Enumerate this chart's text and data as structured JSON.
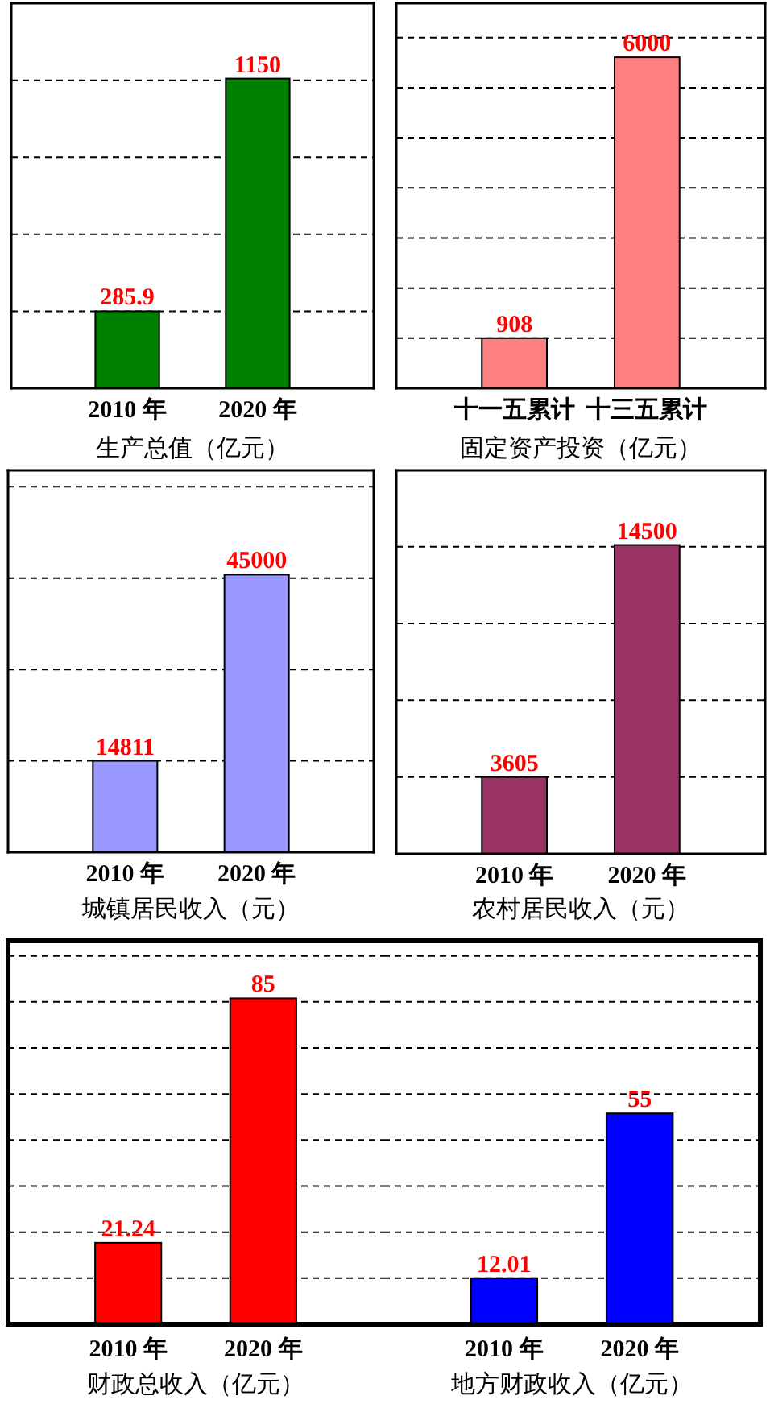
{
  "chart_data": [
    {
      "type": "bar",
      "xlabel": "生产总值（亿元）",
      "categories": [
        "2010 年",
        "2020 年"
      ],
      "values": [
        285.9,
        1150
      ],
      "color": "#008000",
      "ylim": [
        0,
        1430
      ],
      "yticks": [
        285.9,
        571.8,
        857.7,
        1143.6
      ],
      "grid": "y",
      "tick_labels": "x",
      "data_labels": true
    },
    {
      "type": "bar",
      "xlabel": "固定资产投资（亿元）",
      "categories": [
        "十一五累计",
        "十三五累计"
      ],
      "values": [
        908,
        6000
      ],
      "color": "#ff8080",
      "ylim": [
        0,
        6980
      ],
      "yticks": [
        908,
        1816,
        2724,
        3632,
        4540,
        5448,
        6356
      ],
      "grid": "y",
      "tick_labels": "x",
      "data_labels": true
    },
    {
      "type": "bar",
      "xlabel": "城镇居民收入（元）",
      "categories": [
        "2010 年",
        "2020 年"
      ],
      "values": [
        14811,
        45000
      ],
      "color": "#9999ff",
      "ylim": [
        0,
        61900
      ],
      "yticks": [
        14811,
        29622,
        44433,
        59244
      ],
      "grid": "y",
      "tick_labels": "x",
      "data_labels": true
    },
    {
      "type": "bar",
      "xlabel": "农村居民收入（元）",
      "categories": [
        "2010 年",
        "2020 年"
      ],
      "values": [
        3605,
        14500
      ],
      "color": "#993366",
      "ylim": [
        0,
        18000
      ],
      "yticks": [
        3605,
        7210,
        10815,
        14420
      ],
      "grid": "y",
      "tick_labels": "x",
      "data_labels": true
    },
    {
      "type": "bar",
      "xlabel": "财政总收入（亿元）",
      "categories": [
        "2010 年",
        "2020 年"
      ],
      "values": [
        21.24,
        85
      ],
      "color": "#ff0000",
      "ylim": [
        0,
        100
      ],
      "yticks": [
        12.01,
        24.02,
        36.03,
        48.04,
        60.05,
        72.06,
        84.07,
        96.08
      ],
      "grid": "y",
      "tick_labels": "x",
      "data_labels": true
    },
    {
      "type": "bar",
      "xlabel": "地方财政收入（亿元）",
      "categories": [
        "2010 年",
        "2020 年"
      ],
      "values": [
        12.01,
        55
      ],
      "color": "#0000ff",
      "ylim": [
        0,
        100
      ],
      "yticks": [
        12.01,
        24.02,
        36.03,
        48.04,
        60.05,
        72.06,
        84.07,
        96.08
      ],
      "grid": "y",
      "tick_labels": "x",
      "data_labels": true
    }
  ]
}
